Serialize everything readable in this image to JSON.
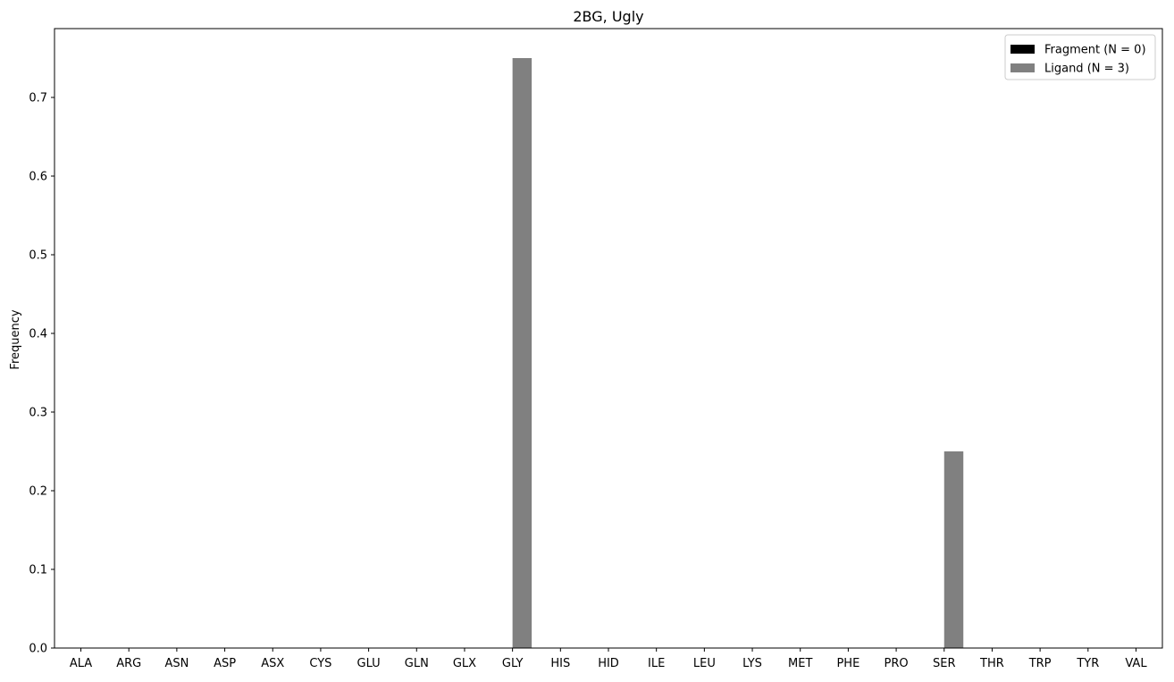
{
  "chart_data": {
    "type": "bar",
    "title": "2BG, Ugly",
    "xlabel": "",
    "ylabel": "Frequency",
    "ylim": [
      0,
      0.7875
    ],
    "yticks": [
      0.0,
      0.1,
      0.2,
      0.3,
      0.4,
      0.5,
      0.6,
      0.7
    ],
    "ytick_labels": [
      "0.0",
      "0.1",
      "0.2",
      "0.3",
      "0.4",
      "0.5",
      "0.6",
      "0.7"
    ],
    "categories": [
      "ALA",
      "ARG",
      "ASN",
      "ASP",
      "ASX",
      "CYS",
      "GLU",
      "GLN",
      "GLX",
      "GLY",
      "HIS",
      "HID",
      "ILE",
      "LEU",
      "LYS",
      "MET",
      "PHE",
      "PRO",
      "SER",
      "THR",
      "TRP",
      "TYR",
      "VAL"
    ],
    "series": [
      {
        "name": "Fragment (N = 0)",
        "color": "#000000",
        "values": [
          0,
          0,
          0,
          0,
          0,
          0,
          0,
          0,
          0,
          0,
          0,
          0,
          0,
          0,
          0,
          0,
          0,
          0,
          0,
          0,
          0,
          0,
          0
        ]
      },
      {
        "name": "Ligand (N = 3)",
        "color": "#808080",
        "values": [
          0,
          0,
          0,
          0,
          0,
          0,
          0,
          0,
          0,
          0.75,
          0,
          0,
          0,
          0,
          0,
          0,
          0,
          0,
          0.25,
          0,
          0,
          0,
          0
        ]
      }
    ],
    "legend_position": "top-right",
    "grid": false
  }
}
